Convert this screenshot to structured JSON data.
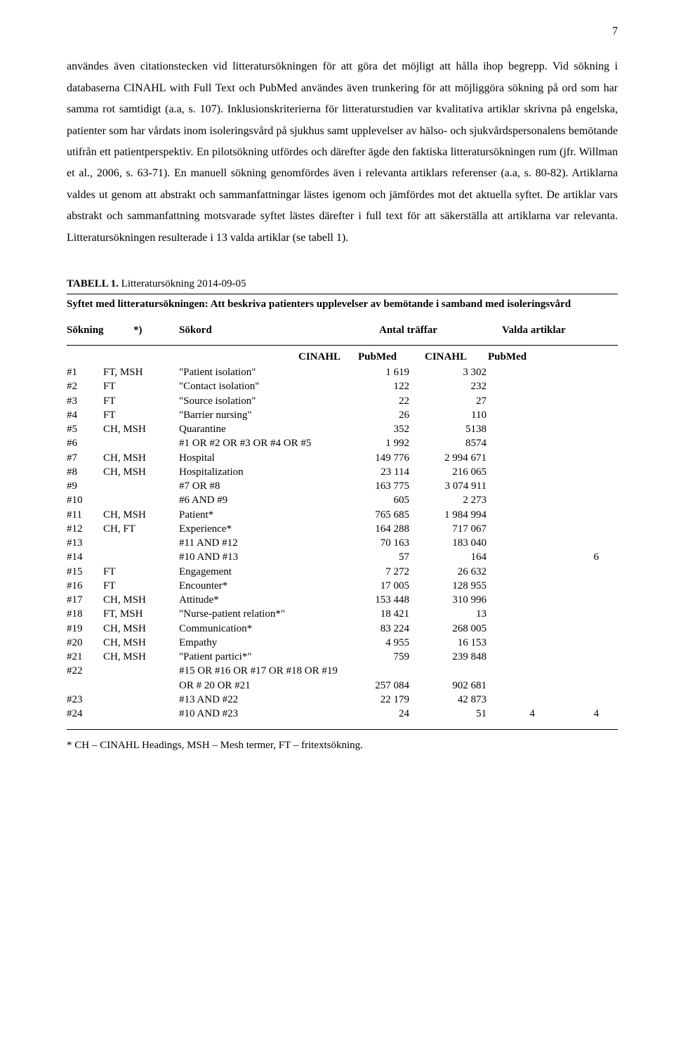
{
  "page_number": "7",
  "body_text": "användes även citationstecken vid litteratursökningen för att göra det möjligt att hålla ihop begrepp. Vid sökning i databaserna CINAHL with Full Text och PubMed användes även trunkering för att möjliggöra sökning på ord som har samma rot samtidigt (a.a, s. 107). Inklusionskriterierna för litteraturstudien var kvalitativa artiklar skrivna på engelska, patienter som har vårdats inom isoleringsvård på sjukhus samt upplevelser av hälso- och sjukvårdspersonalens bemötande utifrån ett patientperspektiv. En pilotsökning utfördes och därefter ägde den faktiska litteratursökningen rum (jfr. Willman et al., 2006, s. 63-71). En manuell sökning genomfördes även i relevanta artiklars referenser (a.a, s. 80-82). Artiklarna valdes ut genom att abstrakt och sammanfattningar lästes igenom och jämfördes mot det aktuella syftet. De artiklar vars abstrakt och sammanfattning motsvarade syftet lästes därefter i full text för att säkerställa att artiklarna var relevanta. Litteratursökningen resulterade i 13 valda artiklar (se tabell 1).",
  "table_label": "TABELL 1.",
  "table_caption": " Litteratursökning 2014-09-05",
  "table_intro": "Syftet med litteratursökningen: Att beskriva patienters upplevelser av bemötande i samband med isoleringsvård",
  "col_sokning": "Sökning",
  "col_ast": "*)",
  "col_sokord": "Sökord",
  "col_antal": "Antal träffar",
  "col_valda": "Valda artiklar",
  "sub_cinahl": "CINAHL",
  "sub_pubmed": "PubMed",
  "rows": [
    {
      "n": "#1",
      "t": "FT, MSH",
      "k": "\"Patient isolation\"",
      "c": "1 619",
      "p": "3 302",
      "vc": "",
      "vp": ""
    },
    {
      "n": "#2",
      "t": "FT",
      "k": "\"Contact isolation\"",
      "c": "122",
      "p": "232",
      "vc": "",
      "vp": ""
    },
    {
      "n": "#3",
      "t": "FT",
      "k": "\"Source isolation\"",
      "c": "22",
      "p": "27",
      "vc": "",
      "vp": ""
    },
    {
      "n": "#4",
      "t": "FT",
      "k": "\"Barrier nursing\"",
      "c": "26",
      "p": "110",
      "vc": "",
      "vp": ""
    },
    {
      "n": "#5",
      "t": "CH, MSH",
      "k": "Quarantine",
      "c": "352",
      "p": "5138",
      "vc": "",
      "vp": ""
    },
    {
      "n": "#6",
      "t": "",
      "k": "#1 OR #2 OR #3 OR #4 OR #5",
      "c": "1 992",
      "p": "8574",
      "vc": "",
      "vp": ""
    },
    {
      "n": "#7",
      "t": "CH, MSH",
      "k": "Hospital",
      "c": "149 776",
      "p": "2 994 671",
      "vc": "",
      "vp": ""
    },
    {
      "n": "#8",
      "t": "CH, MSH",
      "k": "Hospitalization",
      "c": "23 114",
      "p": "216 065",
      "vc": "",
      "vp": ""
    },
    {
      "n": "#9",
      "t": "",
      "k": "#7 OR #8",
      "c": "163 775",
      "p": "3 074 911",
      "vc": "",
      "vp": ""
    },
    {
      "n": "#10",
      "t": "",
      "k": "#6 AND #9",
      "c": "605",
      "p": "2 273",
      "vc": "",
      "vp": ""
    },
    {
      "n": "#11",
      "t": "CH, MSH",
      "k": "Patient*",
      "c": "765 685",
      "p": "1 984 994",
      "vc": "",
      "vp": ""
    },
    {
      "n": "#12",
      "t": "CH, FT",
      "k": "Experience*",
      "c": "164 288",
      "p": "717 067",
      "vc": "",
      "vp": ""
    },
    {
      "n": "#13",
      "t": "",
      "k": "#11 AND #12",
      "c": "70 163",
      "p": "183 040",
      "vc": "",
      "vp": ""
    },
    {
      "n": "#14",
      "t": "",
      "k": "#10 AND #13",
      "c": "57",
      "p": "164",
      "vc": "",
      "vp": "6"
    },
    {
      "n": "#15",
      "t": "FT",
      "k": "Engagement",
      "c": "7 272",
      "p": "26 632",
      "vc": "",
      "vp": ""
    },
    {
      "n": "#16",
      "t": "FT",
      "k": "Encounter*",
      "c": "17 005",
      "p": "128 955",
      "vc": "",
      "vp": ""
    },
    {
      "n": "#17",
      "t": "CH, MSH",
      "k": "Attitude*",
      "c": "153 448",
      "p": "310 996",
      "vc": "",
      "vp": ""
    },
    {
      "n": "#18",
      "t": "FT, MSH",
      "k": "\"Nurse-patient relation*\"",
      "c": "18 421",
      "p": "13",
      "vc": "",
      "vp": ""
    },
    {
      "n": "#19",
      "t": "CH, MSH",
      "k": "Communication*",
      "c": "83 224",
      "p": "268 005",
      "vc": "",
      "vp": ""
    },
    {
      "n": "#20",
      "t": "CH, MSH",
      "k": "Empathy",
      "c": "4 955",
      "p": "16 153",
      "vc": "",
      "vp": ""
    },
    {
      "n": "#21",
      "t": "CH, MSH",
      "k": "\"Patient partici*\"",
      "c": "759",
      "p": "239 848",
      "vc": "",
      "vp": ""
    },
    {
      "n": "#22",
      "t": "",
      "k": "#15 OR #16 OR #17 OR #18 OR #19",
      "c": "",
      "p": "",
      "vc": "",
      "vp": ""
    },
    {
      "n": "",
      "t": "",
      "k": "OR # 20 OR #21",
      "c": "257 084",
      "p": "902 681",
      "vc": "",
      "vp": ""
    },
    {
      "n": "#23",
      "t": "",
      "k": "#13 AND #22",
      "c": "22 179",
      "p": "42 873",
      "vc": "",
      "vp": ""
    },
    {
      "n": "#24",
      "t": "",
      "k": "#10 AND #23",
      "c": "24",
      "p": "51",
      "vc": "4",
      "vp": "4"
    }
  ],
  "footnote": "* CH – CINAHL Headings, MSH – Mesh termer, FT – fritextsökning."
}
